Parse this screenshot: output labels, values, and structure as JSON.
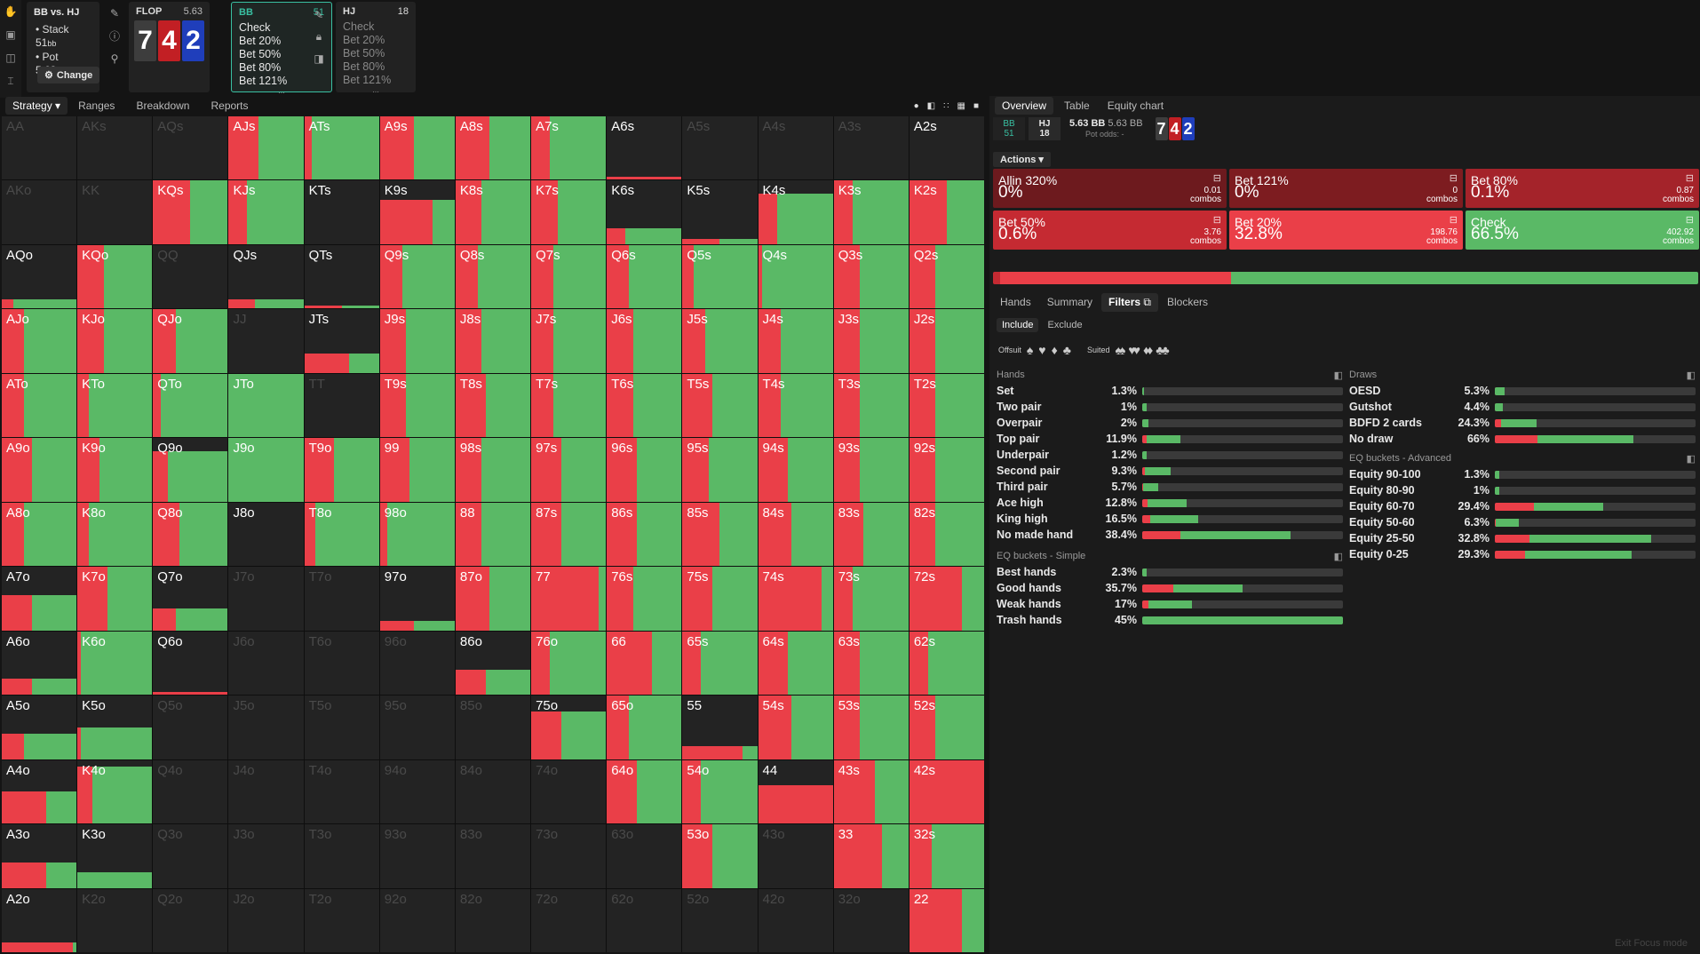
{
  "sidebar_icons": [
    "hand-icon",
    "save-icon",
    "gamepad-icon",
    "text-cursor-icon"
  ],
  "header": {
    "matchup": "BB vs. HJ",
    "stack_label": "• Stack 51",
    "pot_label": "• Pot 5.63",
    "bb_unit": "bb",
    "change_label": "Change",
    "flop_label": "FLOP",
    "flop_pot": "5.63",
    "board": [
      {
        "rank": "7",
        "color": "#3d3d3d"
      },
      {
        "rank": "4",
        "color": "#c21f24"
      },
      {
        "rank": "2",
        "color": "#1f3ebb"
      }
    ],
    "bb_box": {
      "name": "BB",
      "stack": "51",
      "actions": [
        "Check",
        "Bet 20%",
        "Bet 50%",
        "Bet 80%",
        "Bet 121%"
      ],
      "more": "..."
    },
    "hj_box": {
      "name": "HJ",
      "stack": "18",
      "actions": [
        "Check",
        "Bet 20%",
        "Bet 50%",
        "Bet 80%",
        "Bet 121%"
      ],
      "more": "..."
    }
  },
  "left_tabs": [
    "Strategy",
    "Ranges",
    "Breakdown",
    "Reports"
  ],
  "grid_cells": [
    [
      "AA",
      "d"
    ],
    [
      "AKs",
      "d"
    ],
    [
      "AQs",
      "d"
    ],
    [
      "AJs",
      100,
      40
    ],
    [
      "ATs",
      100,
      10
    ],
    [
      "A9s",
      100,
      45
    ],
    [
      "A8s",
      100,
      45
    ],
    [
      "A7s",
      100,
      25
    ],
    [
      "A6s",
      5,
      100
    ],
    [
      "A5s",
      "d"
    ],
    [
      "A4s",
      "d"
    ],
    [
      "A3s",
      "d"
    ],
    [
      "A2s",
      0,
      0
    ],
    [
      "AKo",
      "d"
    ],
    [
      "KK",
      "d"
    ],
    [
      "KQs",
      100,
      50
    ],
    [
      "KJs",
      100,
      25
    ],
    [
      "KTs",
      0,
      0
    ],
    [
      "K9s",
      70,
      70
    ],
    [
      "K8s",
      100,
      35
    ],
    [
      "K7s",
      100,
      35
    ],
    [
      "K6s",
      25,
      25
    ],
    [
      "K5s",
      8,
      50
    ],
    [
      "K4s",
      80,
      25
    ],
    [
      "K3s",
      100,
      25
    ],
    [
      "K2s",
      100,
      50
    ],
    [
      "AQo",
      15,
      15
    ],
    [
      "KQo",
      100,
      35
    ],
    [
      "QQ",
      "d"
    ],
    [
      "QJs",
      15,
      35
    ],
    [
      "QTs",
      5,
      50
    ],
    [
      "Q9s",
      100,
      30
    ],
    [
      "Q8s",
      100,
      30
    ],
    [
      "Q7s",
      100,
      30
    ],
    [
      "Q6s",
      100,
      30
    ],
    [
      "Q5s",
      100,
      15
    ],
    [
      "Q4s",
      100,
      5
    ],
    [
      "Q3s",
      100,
      35
    ],
    [
      "Q2s",
      100,
      35
    ],
    [
      "AJo",
      100,
      30
    ],
    [
      "KJo",
      100,
      35
    ],
    [
      "QJo",
      100,
      30
    ],
    [
      "JJ",
      "d"
    ],
    [
      "JTs",
      30,
      60
    ],
    [
      "J9s",
      100,
      35
    ],
    [
      "J8s",
      100,
      35
    ],
    [
      "J7s",
      100,
      30
    ],
    [
      "J6s",
      100,
      35
    ],
    [
      "J5s",
      100,
      30
    ],
    [
      "J4s",
      100,
      30
    ],
    [
      "J3s",
      100,
      35
    ],
    [
      "J2s",
      100,
      35
    ],
    [
      "ATo",
      100,
      30
    ],
    [
      "KTo",
      100,
      15
    ],
    [
      "QTo",
      100,
      10
    ],
    [
      "JTo",
      100,
      0
    ],
    [
      "TT",
      "d"
    ],
    [
      "T9s",
      100,
      35
    ],
    [
      "T8s",
      100,
      40
    ],
    [
      "T7s",
      100,
      30
    ],
    [
      "T6s",
      100,
      35
    ],
    [
      "T5s",
      100,
      40
    ],
    [
      "T4s",
      100,
      30
    ],
    [
      "T3s",
      100,
      35
    ],
    [
      "T2s",
      100,
      35
    ],
    [
      "A9o",
      100,
      40
    ],
    [
      "K9o",
      100,
      30
    ],
    [
      "Q9o",
      80,
      20
    ],
    [
      "J9o",
      100,
      0
    ],
    [
      "T9o",
      100,
      40
    ],
    [
      "99",
      100,
      40
    ],
    [
      "98s",
      100,
      35
    ],
    [
      "97s",
      100,
      40
    ],
    [
      "96s",
      100,
      40
    ],
    [
      "95s",
      100,
      35
    ],
    [
      "94s",
      100,
      40
    ],
    [
      "93s",
      100,
      35
    ],
    [
      "92s",
      100,
      35
    ],
    [
      "A8o",
      100,
      30
    ],
    [
      "K8o",
      100,
      15
    ],
    [
      "Q8o",
      100,
      35
    ],
    [
      "J8o",
      0,
      0
    ],
    [
      "T8o",
      100,
      15
    ],
    [
      "98o",
      100,
      10
    ],
    [
      "88",
      100,
      35
    ],
    [
      "87s",
      100,
      40
    ],
    [
      "86s",
      100,
      40
    ],
    [
      "85s",
      100,
      50
    ],
    [
      "84s",
      100,
      45
    ],
    [
      "83s",
      100,
      40
    ],
    [
      "82s",
      100,
      35
    ],
    [
      "A7o",
      55,
      40
    ],
    [
      "K7o",
      100,
      40
    ],
    [
      "Q7o",
      35,
      30
    ],
    [
      "J7o",
      "d"
    ],
    [
      "T7o",
      "d"
    ],
    [
      "97o",
      15,
      45
    ],
    [
      "87o",
      100,
      45
    ],
    [
      "77",
      100,
      90
    ],
    [
      "76s",
      100,
      35
    ],
    [
      "75s",
      100,
      40
    ],
    [
      "74s",
      100,
      85
    ],
    [
      "73s",
      100,
      25
    ],
    [
      "72s",
      100,
      70
    ],
    [
      "A6o",
      25,
      40
    ],
    [
      "K6o",
      100,
      5
    ],
    [
      "Q6o",
      5,
      100
    ],
    [
      "J6o",
      "d"
    ],
    [
      "T6o",
      "d"
    ],
    [
      "96o",
      "d"
    ],
    [
      "86o",
      40,
      40
    ],
    [
      "76o",
      100,
      25
    ],
    [
      "66",
      100,
      60
    ],
    [
      "65s",
      100,
      25
    ],
    [
      "64s",
      100,
      40
    ],
    [
      "63s",
      100,
      35
    ],
    [
      "62s",
      100,
      25
    ],
    [
      "A5o",
      40,
      30
    ],
    [
      "K5o",
      50,
      5
    ],
    [
      "Q5o",
      "d"
    ],
    [
      "J5o",
      "d"
    ],
    [
      "T5o",
      "d"
    ],
    [
      "95o",
      "d"
    ],
    [
      "85o",
      "d"
    ],
    [
      "75o",
      75,
      40
    ],
    [
      "65o",
      100,
      30
    ],
    [
      "55",
      20,
      80
    ],
    [
      "54s",
      100,
      45
    ],
    [
      "53s",
      100,
      35
    ],
    [
      "52s",
      100,
      35
    ],
    [
      "A4o",
      50,
      60
    ],
    [
      "K4o",
      90,
      20
    ],
    [
      "Q4o",
      "d"
    ],
    [
      "J4o",
      "d"
    ],
    [
      "T4o",
      "d"
    ],
    [
      "94o",
      "d"
    ],
    [
      "84o",
      "d"
    ],
    [
      "74o",
      "d"
    ],
    [
      "64o",
      100,
      40
    ],
    [
      "54o",
      100,
      25
    ],
    [
      "44",
      60,
      100
    ],
    [
      "43s",
      100,
      55
    ],
    [
      "42s",
      100,
      100
    ],
    [
      "A3o",
      40,
      60
    ],
    [
      "K3o",
      25,
      0
    ],
    [
      "Q3o",
      "d"
    ],
    [
      "J3o",
      "d"
    ],
    [
      "T3o",
      "d"
    ],
    [
      "93o",
      "d"
    ],
    [
      "83o",
      "d"
    ],
    [
      "73o",
      "d"
    ],
    [
      "63o",
      "d"
    ],
    [
      "53o",
      100,
      40
    ],
    [
      "43o",
      "d"
    ],
    [
      "33",
      100,
      65
    ],
    [
      "32s",
      100,
      30
    ],
    [
      "A2o",
      15,
      95
    ],
    [
      "K2o",
      "d"
    ],
    [
      "Q2o",
      "d"
    ],
    [
      "J2o",
      "d"
    ],
    [
      "T2o",
      "d"
    ],
    [
      "92o",
      "d"
    ],
    [
      "82o",
      "d"
    ],
    [
      "72o",
      "d"
    ],
    [
      "62o",
      "d"
    ],
    [
      "52o",
      "d"
    ],
    [
      "42o",
      "d"
    ],
    [
      "32o",
      "d"
    ],
    [
      "22",
      100,
      70
    ]
  ],
  "right": {
    "tabs": [
      "Overview",
      "Table",
      "Equity chart"
    ],
    "players": [
      {
        "name": "BB",
        "stack": "51"
      },
      {
        "name": "HJ",
        "stack": "18"
      }
    ],
    "pot": "5.63 BB",
    "pot2": "5.63 BB",
    "pot_odds": "Pot odds: -",
    "actions_label": "Actions",
    "cards": [
      {
        "title": "Allin 320%",
        "pct": "0%",
        "combos": "0.01",
        "color": "#6d1a1e"
      },
      {
        "title": "Bet 121%",
        "pct": "0%",
        "combos": "0",
        "color": "#7d1c20"
      },
      {
        "title": "Bet 80%",
        "pct": "0.1%",
        "combos": "0.87",
        "color": "#a4232a"
      },
      {
        "title": "Bet 50%",
        "pct": "0.6%",
        "combos": "3.76",
        "color": "#c52a32"
      },
      {
        "title": "Bet 20%",
        "pct": "32.8%",
        "combos": "198.76",
        "color": "#ea3f48"
      },
      {
        "title": "Check",
        "pct": "66.5%",
        "combos": "402.92",
        "color": "#5ab966"
      }
    ],
    "combos_word": "combos",
    "sub_tabs": [
      "Hands",
      "Summary",
      "Filters",
      "Blockers"
    ],
    "include": "Include",
    "exclude": "Exclude",
    "offsuit": "Offsuit",
    "suited": "Suited",
    "hands_title": "Hands",
    "hands": [
      [
        "Set",
        "1.3%",
        2,
        1
      ],
      [
        "Two pair",
        "1%",
        1,
        2
      ],
      [
        "Overpair",
        "2%",
        2,
        3
      ],
      [
        "Top pair",
        "11.9%",
        12,
        19
      ],
      [
        "Underpair",
        "1.2%",
        1,
        2
      ],
      [
        "Second pair",
        "9.3%",
        10,
        14
      ],
      [
        "Third pair",
        "5.7%",
        5,
        8
      ],
      [
        "Ace high",
        "12.8%",
        12,
        22
      ],
      [
        "King high",
        "16.5%",
        15,
        28
      ],
      [
        "No made hand",
        "38.4%",
        26,
        74
      ]
    ],
    "eqs_title": "EQ buckets - Simple",
    "eqs": [
      [
        "Best hands",
        "2.3%",
        3,
        2
      ],
      [
        "Good hands",
        "35.7%",
        31,
        50
      ],
      [
        "Weak hands",
        "17%",
        13,
        25
      ],
      [
        "Trash hands",
        "45%",
        0,
        100
      ]
    ],
    "draws_title": "Draws",
    "draws": [
      [
        "OESD",
        "5.3%",
        4,
        5
      ],
      [
        "Gutshot",
        "4.4%",
        3,
        4
      ],
      [
        "BDFD 2 cards",
        "24.3%",
        15,
        21
      ],
      [
        "No draw",
        "66%",
        31,
        69
      ]
    ],
    "eqa_title": "EQ buckets - Advanced",
    "eqa": [
      [
        "Equity 90-100",
        "1.3%",
        2,
        2
      ],
      [
        "Equity 80-90",
        "1%",
        1,
        2
      ],
      [
        "Equity 60-70",
        "29.4%",
        36,
        54
      ],
      [
        "Equity 50-60",
        "6.3%",
        5,
        12
      ],
      [
        "Equity 25-50",
        "32.8%",
        22,
        78
      ],
      [
        "Equity 0-25",
        "29.3%",
        22,
        68
      ]
    ],
    "exit": "Exit Focus mode"
  }
}
